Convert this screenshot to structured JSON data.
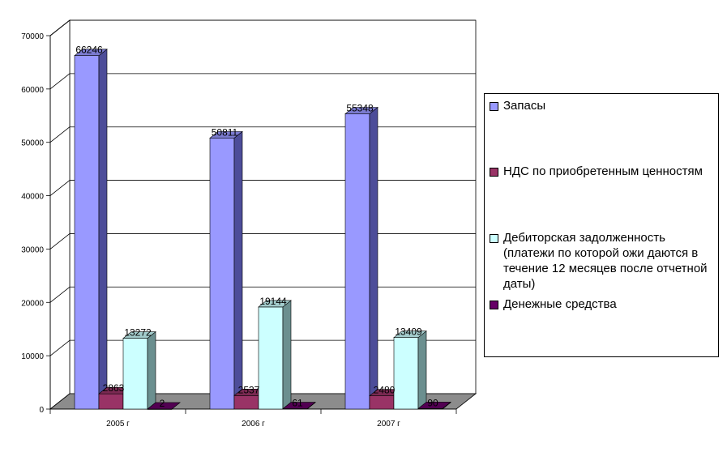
{
  "chart_data": {
    "type": "bar",
    "categories": [
      "2005 г",
      "2006 г",
      "2007 г"
    ],
    "series": [
      {
        "name": "Запасы",
        "values": [
          66246,
          50811,
          55348
        ],
        "color": "#9999ff",
        "side": "#4d4d99",
        "top": "#7b7bd0"
      },
      {
        "name": "НДС по приобретенным ценностям",
        "values": [
          2863,
          2537,
          2480
        ],
        "color": "#993366",
        "side": "#5c1f3d",
        "top": "#7a2952"
      },
      {
        "name": "Дебиторская задолженность (платежи по которой ожи даются в течение 12 месяцев после отчетной даты)",
        "values": [
          13272,
          19144,
          13409
        ],
        "color": "#ccffff",
        "side": "#6b8f8f",
        "top": "#a3cccc"
      },
      {
        "name": "Денежные средства",
        "values": [
          2,
          61,
          90
        ],
        "color": "#660066",
        "side": "#330033",
        "top": "#520052"
      }
    ],
    "y_ticks": [
      "0",
      "10000",
      "20000",
      "30000",
      "40000",
      "50000",
      "60000",
      "70000"
    ],
    "ylim": [
      0,
      70000
    ],
    "grid": true,
    "legend_position": "right",
    "title": "",
    "xlabel": "",
    "ylabel": ""
  }
}
